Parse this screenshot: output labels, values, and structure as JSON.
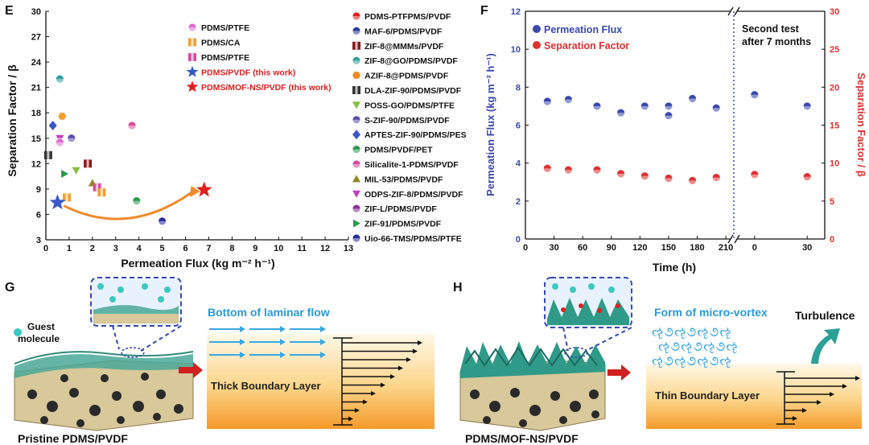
{
  "panel_labels": {
    "E": "E",
    "F": "F",
    "G": "G",
    "H": "H"
  },
  "colors": {
    "blue_flux": "#3a48b0",
    "red_sep": "#e03030",
    "orange_arrow": "#f08a2a",
    "teal": "#2fa38f",
    "sky": "#3aa7e0",
    "orange_gradient_top": "#fff3dc",
    "orange_gradient_bottom": "#f59a2a"
  },
  "chart_data": [
    {
      "id": "E",
      "type": "scatter",
      "xlabel": "Permeation Flux (kg m⁻² h⁻¹)",
      "ylabel": "Separation Factor / β",
      "xlim": [
        0,
        13
      ],
      "ylim": [
        3,
        30
      ],
      "xticks": [
        "0",
        "1",
        "2",
        "3",
        "4",
        "5",
        "6",
        "7",
        "8",
        "9",
        "10",
        "11",
        "12",
        "13"
      ],
      "yticks": [
        "3",
        "6",
        "9",
        "12",
        "15",
        "18",
        "21",
        "24",
        "27",
        "30"
      ],
      "legend_left": [
        {
          "name": "PDMS/PTFE",
          "color": "#e06ad0",
          "marker": "circle"
        },
        {
          "name": "PDMS/CA",
          "color": "#f0a030",
          "marker": "square"
        },
        {
          "name": "PDMS/PTFE",
          "color": "#e0489c",
          "marker": "square"
        },
        {
          "name": "PDMS/PVDF (this work)",
          "color": "#3a58c8",
          "marker": "star",
          "highlight": true
        },
        {
          "name": "PDMS/MOF-NS/PVDF (this work)",
          "color": "#e02020",
          "marker": "star",
          "highlight": true
        }
      ],
      "legend_right": [
        {
          "name": "PDMS-PTFPMS/PVDF",
          "color": "#e02020",
          "marker": "circle"
        },
        {
          "name": "MAF-6/PDMS/PVDF",
          "color": "#2a3a9a",
          "marker": "circle"
        },
        {
          "name": "ZIF-8@MMMs/PVDF",
          "color": "#8a1a1a",
          "marker": "square"
        },
        {
          "name": "ZIF-8@GO/PDMS/PVDF",
          "color": "#2fa0a0",
          "marker": "circle"
        },
        {
          "name": "AZIF-8@PDMS/PVDF",
          "color": "#f08a20",
          "marker": "hexagon"
        },
        {
          "name": "DLA-ZIF-90/PDMS/PVDF",
          "color": "#333333",
          "marker": "square"
        },
        {
          "name": "POSS-GO/PDMS/PTFE",
          "color": "#88c040",
          "marker": "triangle-down"
        },
        {
          "name": "S-ZIF-90/PDMS/PVDF",
          "color": "#5a4ab0",
          "marker": "circle"
        },
        {
          "name": "APTES-ZIF-90/PDMS/PES",
          "color": "#3a58c8",
          "marker": "diamond"
        },
        {
          "name": "PDMS/PVDF/PET",
          "color": "#2a9a4a",
          "marker": "circle"
        },
        {
          "name": "Silicalite-1-PDMS/PVDF",
          "color": "#e0489c",
          "marker": "circle"
        },
        {
          "name": "MIL-53/PDMS/PVDF",
          "color": "#8a8a20",
          "marker": "triangle"
        },
        {
          "name": "ODPS-ZIF-8/PDMS/PVDF",
          "color": "#c040c0",
          "marker": "triangle-down"
        },
        {
          "name": "ZIF-L/PDMS/PVDF",
          "color": "#8a2a9a",
          "marker": "circle"
        },
        {
          "name": "ZIF-91/PDMS/PVDF",
          "color": "#2a9a4a",
          "marker": "triangle-right"
        },
        {
          "name": "Uio-66-TMS/PDMS/PTFE",
          "color": "#2a2a9a",
          "marker": "circle"
        }
      ],
      "points": [
        {
          "x": 0.6,
          "y": 22.0,
          "color": "#2fa0a0",
          "marker": "circle"
        },
        {
          "x": 0.3,
          "y": 16.5,
          "color": "#3a58c8",
          "marker": "diamond"
        },
        {
          "x": 0.7,
          "y": 17.6,
          "color": "#f0a030",
          "marker": "hexagon"
        },
        {
          "x": 0.6,
          "y": 15.0,
          "color": "#c040c0",
          "marker": "triangle-down"
        },
        {
          "x": 0.6,
          "y": 14.5,
          "color": "#e06ad0",
          "marker": "circle"
        },
        {
          "x": 1.1,
          "y": 15.0,
          "color": "#5a4ab0",
          "marker": "circle"
        },
        {
          "x": 0.1,
          "y": 13.0,
          "color": "#333333",
          "marker": "square"
        },
        {
          "x": 0.8,
          "y": 10.8,
          "color": "#2a9a4a",
          "marker": "triangle-right"
        },
        {
          "x": 1.3,
          "y": 11.2,
          "color": "#88c040",
          "marker": "triangle-down"
        },
        {
          "x": 1.8,
          "y": 12.0,
          "color": "#8a1a1a",
          "marker": "square"
        },
        {
          "x": 2.0,
          "y": 9.7,
          "color": "#8a8a20",
          "marker": "triangle"
        },
        {
          "x": 2.2,
          "y": 9.2,
          "color": "#e0489c",
          "marker": "square"
        },
        {
          "x": 2.4,
          "y": 8.6,
          "color": "#f0a030",
          "marker": "square"
        },
        {
          "x": 0.9,
          "y": 8.0,
          "color": "#f0a030",
          "marker": "square"
        },
        {
          "x": 3.7,
          "y": 16.5,
          "color": "#e0489c",
          "marker": "circle"
        },
        {
          "x": 3.9,
          "y": 7.6,
          "color": "#2a9a4a",
          "marker": "circle"
        },
        {
          "x": 5.0,
          "y": 5.2,
          "color": "#2a2a9a",
          "marker": "circle"
        },
        {
          "x": 0.5,
          "y": 7.4,
          "color": "#3a58c8",
          "marker": "star",
          "size": 1.6
        },
        {
          "x": 6.8,
          "y": 8.9,
          "color": "#e02020",
          "marker": "star",
          "size": 1.6
        }
      ]
    },
    {
      "id": "F",
      "type": "scatter",
      "xlabel": "Time (h)",
      "ylabel": "Permeation Flux (kg m⁻² h⁻¹)",
      "ylabel_right": "Separation Factor / β",
      "ylim": [
        0,
        12
      ],
      "ylim_right": [
        0,
        30
      ],
      "yticks": [
        "0",
        "2",
        "4",
        "6",
        "8",
        "10",
        "12"
      ],
      "yticks_right": [
        "0",
        "5",
        "10",
        "15",
        "20",
        "25",
        "30"
      ],
      "segment1": {
        "xlim": [
          0,
          215
        ],
        "xticks": [
          "0",
          "30",
          "60",
          "90",
          "120",
          "150",
          "180",
          "210"
        ]
      },
      "segment2": {
        "xlim": [
          -10,
          40
        ],
        "xticks": [
          "0",
          "30"
        ]
      },
      "annotation": [
        "Second test",
        "after 7 months"
      ],
      "series": [
        {
          "name": "Permeation Flux",
          "color": "#3a48b0",
          "segment1": [
            [
              23,
              7.25
            ],
            [
              45,
              7.35
            ],
            [
              75,
              7.0
            ],
            [
              100,
              6.65
            ],
            [
              125,
              7.0
            ],
            [
              150,
              7.0
            ],
            [
              150,
              6.5
            ],
            [
              175,
              7.4
            ],
            [
              200,
              6.9
            ]
          ],
          "segment2": [
            [
              0,
              7.6
            ],
            [
              30,
              7.0
            ]
          ]
        },
        {
          "name": "Separation Factor",
          "color": "#e03030",
          "axis": "right",
          "segment1": [
            [
              23,
              9.3
            ],
            [
              45,
              9.1
            ],
            [
              75,
              9.1
            ],
            [
              100,
              8.6
            ],
            [
              125,
              8.3
            ],
            [
              150,
              8.0
            ],
            [
              175,
              7.7
            ],
            [
              200,
              8.1
            ]
          ],
          "segment2": [
            [
              0,
              8.5
            ],
            [
              30,
              8.2
            ]
          ]
        }
      ]
    }
  ],
  "panel_g": {
    "guest_molecule": [
      "Guest",
      "molecule"
    ],
    "flow_label": "Bottom of laminar flow",
    "boundary_label": "Thick Boundary Layer",
    "caption": "Pristine PDMS/PVDF"
  },
  "panel_h": {
    "flow_label": "Form of micro-vortex",
    "turbulence_label": "Turbulence",
    "boundary_label": "Thin Boundary Layer",
    "caption": "PDMS/MOF-NS/PVDF",
    "vortex_glyphs": "ૡ૭ૡ૭ૡ૭ૡ"
  }
}
